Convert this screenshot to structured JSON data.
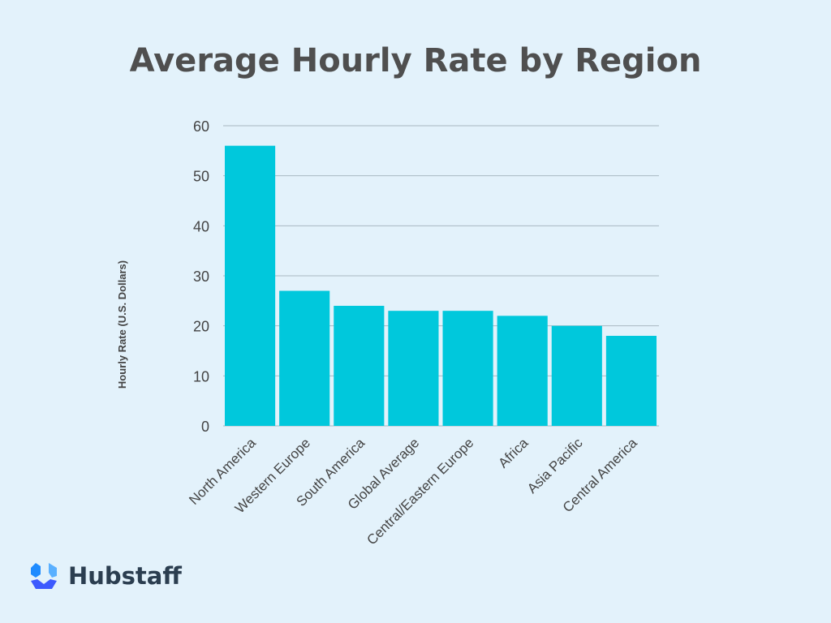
{
  "chart_data": {
    "type": "bar",
    "title": "Average Hourly Rate by Region",
    "xlabel": "",
    "ylabel": "Hourly Rate (U.S. Dollars)",
    "categories": [
      "North America",
      "Western Europe",
      "South America",
      "Global Average",
      "Central/Eastern Europe",
      "Africa",
      "Asia Pacific",
      "Central America"
    ],
    "values": [
      56,
      27,
      24,
      23,
      23,
      22,
      20,
      18
    ],
    "ylim": [
      0,
      60
    ],
    "yticks": [
      0,
      10,
      20,
      30,
      40,
      50,
      60
    ],
    "grid": true,
    "bar_color": "#00c8dc",
    "grid_color": "#a9b8c2"
  },
  "logo": {
    "text": "Hubstaff",
    "colors": [
      "#1e8bff",
      "#3d5afe"
    ]
  }
}
